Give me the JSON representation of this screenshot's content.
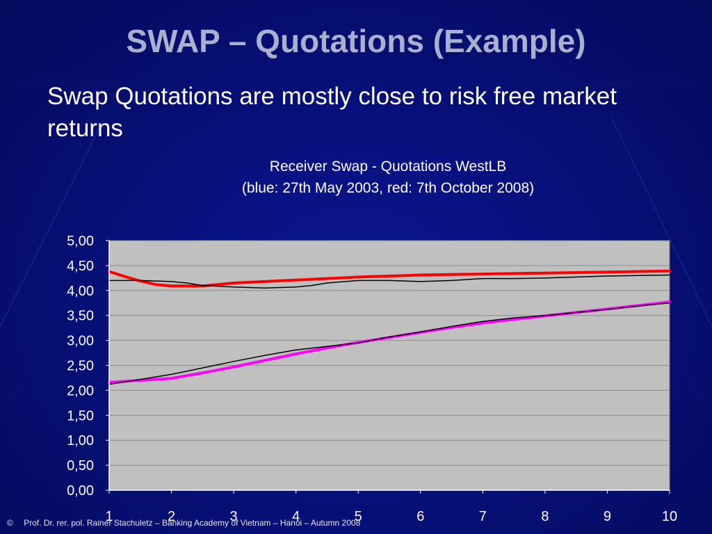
{
  "slide": {
    "title": "SWAP – Quotations (Example)",
    "subtitle": "Swap Quotations are mostly close to risk free market returns",
    "footer_symbol": "©",
    "footer_text": "Prof. Dr. rer. pol. Rainer Stachuletz – Banking Academy of Vietnam – Hanoi – Autumn 2008"
  },
  "colors": {
    "background": "#07107a",
    "plot_area": "#c0c0c0",
    "red_series": "#ff0000",
    "magenta_series": "#ff00ff",
    "black_series": "#000000"
  },
  "chart_data": {
    "type": "line",
    "title": "Receiver Swap - Quotations  WestLB",
    "subtitle": "(blue: 27th May 2003, red: 7th October 2008)",
    "xlabel": "",
    "ylabel": "",
    "categories": [
      "1",
      "2",
      "3",
      "4",
      "5",
      "6",
      "7",
      "8",
      "9",
      "10"
    ],
    "ylim": [
      0,
      5
    ],
    "yticks": [
      "0,00",
      "0,50",
      "1,00",
      "1,50",
      "2,00",
      "2,50",
      "3,00",
      "3,50",
      "4,00",
      "4,50",
      "5,00"
    ],
    "grid": true,
    "legend": "none",
    "series": [
      {
        "color": "#ff0000",
        "x": [
          1,
          1.25,
          1.5,
          1.75,
          2,
          2.25,
          2.5,
          2.75,
          3,
          3.5,
          4,
          4.5,
          5,
          5.5,
          6,
          6.5,
          7,
          7.5,
          8,
          8.5,
          9,
          9.5,
          10
        ],
        "values": [
          4.38,
          4.28,
          4.19,
          4.12,
          4.09,
          4.09,
          4.09,
          4.12,
          4.15,
          4.18,
          4.21,
          4.24,
          4.27,
          4.29,
          4.31,
          4.32,
          4.33,
          4.34,
          4.35,
          4.36,
          4.37,
          4.38,
          4.39
        ]
      },
      {
        "color": "#000000",
        "x": [
          1,
          1.5,
          2,
          2.25,
          2.5,
          3,
          3.5,
          4,
          4.25,
          4.5,
          5,
          5.5,
          6,
          6.5,
          7,
          7.5,
          8,
          8.5,
          9,
          9.5,
          10
        ],
        "values": [
          4.2,
          4.2,
          4.18,
          4.15,
          4.1,
          4.07,
          4.05,
          4.07,
          4.1,
          4.15,
          4.2,
          4.2,
          4.18,
          4.2,
          4.24,
          4.24,
          4.25,
          4.27,
          4.29,
          4.3,
          4.31
        ]
      },
      {
        "color": "#ff00ff",
        "x": [
          1,
          1.5,
          2,
          2.5,
          3,
          3.5,
          4,
          4.5,
          5,
          5.5,
          6,
          6.5,
          7,
          7.5,
          8,
          8.5,
          9,
          9.5,
          10
        ],
        "values": [
          2.16,
          2.2,
          2.24,
          2.35,
          2.47,
          2.6,
          2.73,
          2.85,
          2.96,
          3.06,
          3.16,
          3.26,
          3.35,
          3.42,
          3.49,
          3.56,
          3.63,
          3.7,
          3.77
        ]
      },
      {
        "color": "#000000",
        "x": [
          1,
          1.5,
          2,
          2.5,
          3,
          3.5,
          4,
          4.5,
          5,
          5.5,
          6,
          6.5,
          7,
          7.5,
          8,
          8.5,
          9,
          9.5,
          10
        ],
        "values": [
          2.12,
          2.22,
          2.32,
          2.45,
          2.58,
          2.7,
          2.81,
          2.88,
          2.95,
          3.07,
          3.17,
          3.28,
          3.38,
          3.45,
          3.5,
          3.56,
          3.62,
          3.69,
          3.75
        ]
      }
    ]
  }
}
